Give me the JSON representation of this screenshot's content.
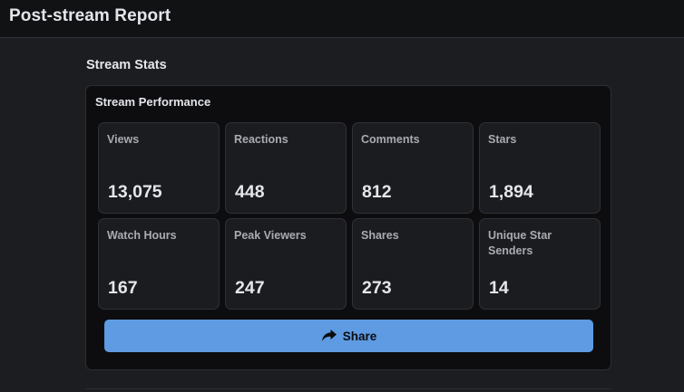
{
  "header": {
    "title": "Post-stream Report"
  },
  "section": {
    "title": "Stream Stats"
  },
  "card": {
    "title": "Stream Performance",
    "stats": [
      {
        "label": "Views",
        "value": "13,075"
      },
      {
        "label": "Reactions",
        "value": "448"
      },
      {
        "label": "Comments",
        "value": "812"
      },
      {
        "label": "Stars",
        "value": "1,894"
      },
      {
        "label": "Watch Hours",
        "value": "167"
      },
      {
        "label": "Peak Viewers",
        "value": "247"
      },
      {
        "label": "Shares",
        "value": "273"
      },
      {
        "label": "Unique Star Senders",
        "value": "14"
      }
    ],
    "share_button": {
      "label": "Share",
      "icon": "share-arrow-icon"
    }
  },
  "colors": {
    "background": "#1c1d21",
    "header_bg": "#111214",
    "card_bg": "#0d0d0f",
    "tile_bg": "#1b1c20",
    "accent": "#5e9be3",
    "text_primary": "#e4e6eb",
    "text_secondary": "#a8abb1"
  }
}
